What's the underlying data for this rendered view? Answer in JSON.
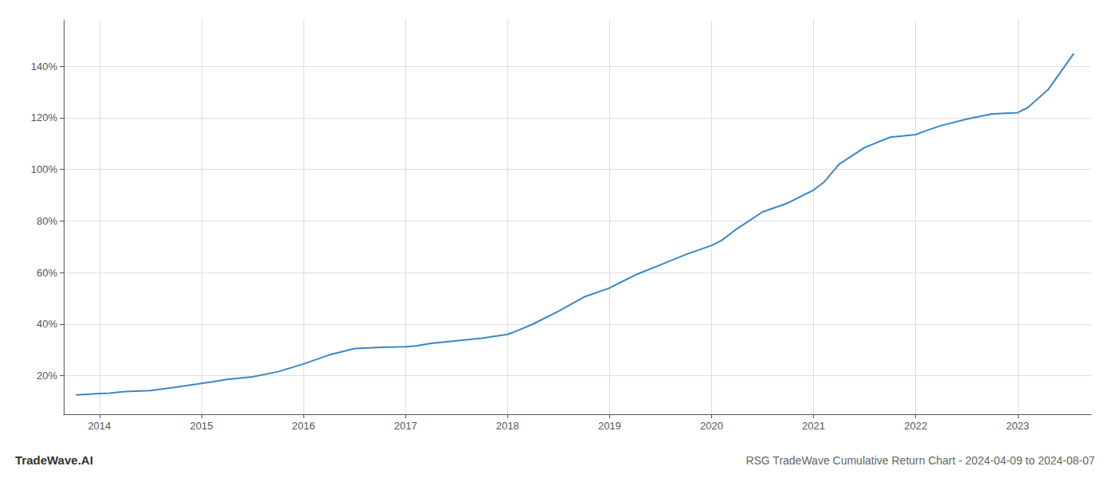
{
  "chart_data": {
    "type": "line",
    "title": "RSG TradeWave Cumulative Return Chart - 2024-04-09 to 2024-08-07",
    "annotations": [
      "TradeWave.AI"
    ],
    "x": [
      2013.77,
      2014.0,
      2014.1,
      2014.25,
      2014.5,
      2014.75,
      2015.0,
      2015.1,
      2015.25,
      2015.5,
      2015.75,
      2016.0,
      2016.25,
      2016.4,
      2016.5,
      2016.75,
      2017.0,
      2017.1,
      2017.25,
      2017.5,
      2017.75,
      2018.0,
      2018.1,
      2018.25,
      2018.5,
      2018.75,
      2019.0,
      2019.1,
      2019.25,
      2019.5,
      2019.75,
      2020.0,
      2020.1,
      2020.25,
      2020.5,
      2020.75,
      2021.0,
      2021.1,
      2021.25,
      2021.5,
      2021.75,
      2022.0,
      2022.1,
      2022.25,
      2022.5,
      2022.75,
      2023.0,
      2023.1,
      2023.3,
      2023.55
    ],
    "values": [
      12.5,
      13.0,
      13.2,
      13.8,
      14.2,
      15.5,
      17.0,
      17.5,
      18.5,
      19.5,
      21.5,
      24.5,
      28.0,
      29.5,
      30.5,
      31.0,
      31.2,
      31.5,
      32.5,
      33.5,
      34.5,
      36.0,
      37.5,
      40.0,
      45.0,
      50.5,
      54.0,
      56.0,
      59.0,
      63.0,
      67.0,
      70.5,
      72.5,
      77.0,
      83.5,
      87.0,
      92.0,
      95.0,
      102.0,
      108.5,
      112.5,
      113.5,
      115.0,
      117.0,
      119.5,
      121.5,
      122.0,
      124.0,
      131.0,
      145.0
    ],
    "color": "#3a87c8",
    "xlim": [
      2013.65,
      2023.72
    ],
    "xticks": [
      2014,
      2015,
      2016,
      2017,
      2018,
      2019,
      2020,
      2021,
      2022,
      2023
    ],
    "ylim": [
      5,
      158
    ],
    "yticks": [
      {
        "value": 20,
        "label": "20%"
      },
      {
        "value": 40,
        "label": "40%"
      },
      {
        "value": 60,
        "label": "60%"
      },
      {
        "value": 80,
        "label": "80%"
      },
      {
        "value": 100,
        "label": "100%"
      },
      {
        "value": 120,
        "label": "120%"
      },
      {
        "value": 140,
        "label": "140%"
      }
    ],
    "grid": true
  }
}
